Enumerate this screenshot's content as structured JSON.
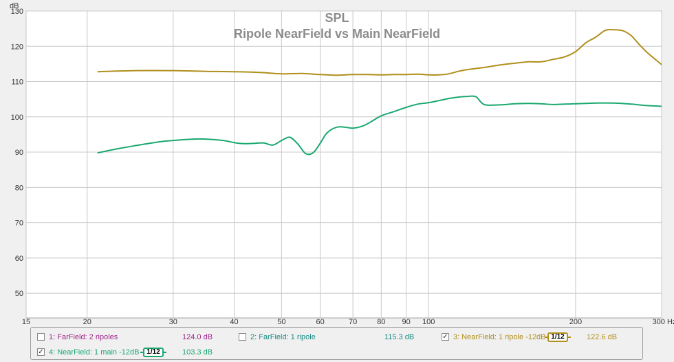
{
  "chart_data": {
    "type": "line",
    "title": "SPL",
    "subtitle": "Ripole NearField vs Main NearField",
    "xlabel": "",
    "ylabel": "dB",
    "x_scale": "log",
    "xlim": [
      15,
      300
    ],
    "ylim": [
      43,
      130
    ],
    "x_ticks": [
      15,
      20,
      30,
      40,
      50,
      60,
      70,
      80,
      90,
      100,
      200,
      300
    ],
    "x_tick_labels": [
      "15",
      "20",
      "30",
      "40",
      "50",
      "60",
      "70",
      "80",
      "90",
      "100",
      "200",
      "300 Hz"
    ],
    "y_ticks": [
      50,
      60,
      70,
      80,
      90,
      100,
      110,
      120,
      130
    ],
    "grid": true,
    "series": [
      {
        "name": "3: NearField: 1 ripole -12dB",
        "color": "#b08f1c",
        "x": [
          21,
          25,
          30,
          35,
          40,
          45,
          50,
          55,
          60,
          65,
          70,
          75,
          80,
          85,
          90,
          95,
          100,
          105,
          110,
          115,
          120,
          130,
          140,
          150,
          160,
          170,
          180,
          190,
          200,
          210,
          220,
          230,
          240,
          250,
          260,
          270,
          280,
          290,
          300
        ],
        "y": [
          112.8,
          113.1,
          113.1,
          112.9,
          112.8,
          112.6,
          112.2,
          112.3,
          112.0,
          111.8,
          112.0,
          112.0,
          111.9,
          112.0,
          112.0,
          112.1,
          111.9,
          111.9,
          112.2,
          112.9,
          113.4,
          114.0,
          114.7,
          115.2,
          115.6,
          115.6,
          116.3,
          117.0,
          118.5,
          121.0,
          122.6,
          124.5,
          124.7,
          124.4,
          123.0,
          120.5,
          118.3,
          116.5,
          114.8
        ]
      },
      {
        "name": "4: NearField: 1 main -12dB",
        "color": "#1aa870",
        "x": [
          21,
          23,
          25,
          28,
          30,
          33,
          35,
          38,
          40,
          42,
          44,
          46,
          48,
          50,
          52,
          54,
          56,
          58,
          60,
          62,
          65,
          68,
          70,
          73,
          76,
          80,
          85,
          90,
          95,
          100,
          105,
          110,
          115,
          120,
          125,
          130,
          140,
          150,
          160,
          170,
          180,
          190,
          200,
          220,
          240,
          260,
          280,
          300
        ],
        "y": [
          89.8,
          90.9,
          91.8,
          92.9,
          93.3,
          93.7,
          93.7,
          93.3,
          92.7,
          92.4,
          92.5,
          92.6,
          92.0,
          93.3,
          94.2,
          92.3,
          89.6,
          89.8,
          92.5,
          95.5,
          97.1,
          97.0,
          96.8,
          97.3,
          98.5,
          100.3,
          101.5,
          102.7,
          103.6,
          104.0,
          104.6,
          105.2,
          105.6,
          105.8,
          105.7,
          103.5,
          103.4,
          103.7,
          103.8,
          103.7,
          103.5,
          103.6,
          103.7,
          103.9,
          103.9,
          103.6,
          103.2,
          103.0
        ]
      }
    ]
  },
  "legend": {
    "items": [
      {
        "label": "1: FarField: 2 ripoles",
        "value": "124.0 dB",
        "checked": false,
        "color": "#a0268c"
      },
      {
        "label": "2: FarField: 1 ripole",
        "value": "115.3 dB",
        "checked": false,
        "color": "#1b8c86"
      },
      {
        "label": "3: NearField: 1 ripole -12dB",
        "value": "122.6 dB",
        "checked": true,
        "color": "#b08f1c",
        "smoothing": "1/12"
      },
      {
        "label": "4: NearField: 1 main -12dB",
        "value": "103.3 dB",
        "checked": true,
        "color": "#1aa870",
        "smoothing": "1/12"
      }
    ]
  },
  "check_mark": "✓"
}
